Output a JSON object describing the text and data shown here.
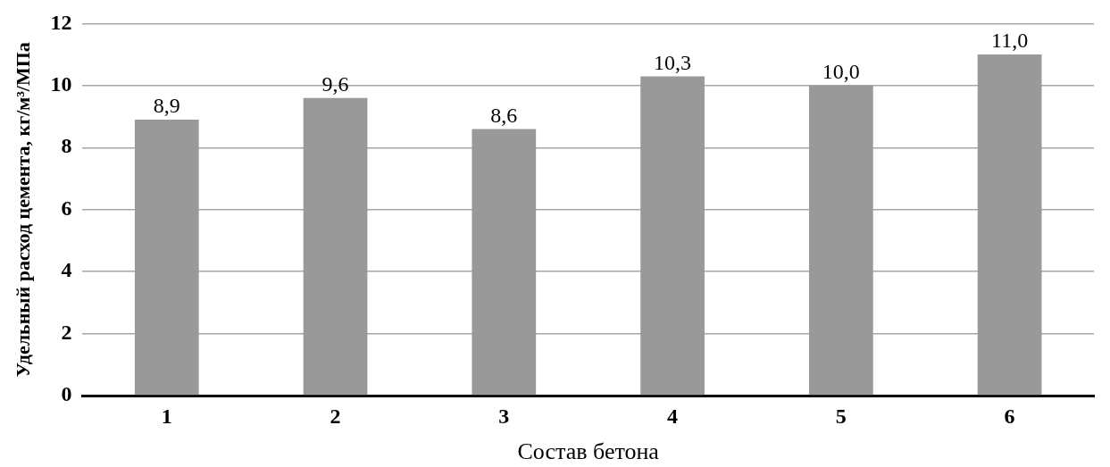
{
  "chart_data": {
    "type": "bar",
    "xlabel": "Состав бетона",
    "ylabel": "Удельный расход цемента, кг/м³/МПа",
    "categories": [
      "1",
      "2",
      "3",
      "4",
      "5",
      "6"
    ],
    "values": [
      8.9,
      9.6,
      8.6,
      10.3,
      10.0,
      11.0
    ],
    "value_labels": [
      "8,9",
      "9,6",
      "8,6",
      "10,3",
      "10,0",
      "11,0"
    ],
    "color": "#999999",
    "ylim": [
      0,
      12
    ],
    "yticks": [
      0,
      2,
      4,
      6,
      8,
      10,
      12
    ],
    "grid": "y",
    "legend": false
  }
}
